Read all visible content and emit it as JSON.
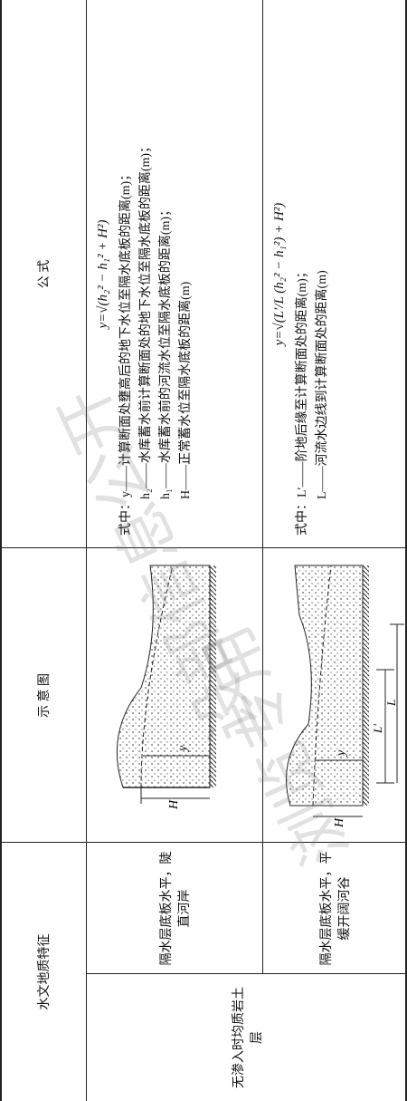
{
  "table": {
    "headers": [
      "水文地质特征",
      "示 意 图",
      "公 式"
    ],
    "category": "无渗入时均质岩土层",
    "rows": [
      {
        "feature": "隔水层底板水平，陡直河岸",
        "diagram_labels": [
          "H",
          "y"
        ],
        "formula": "y=√(h₂² − h₁² + H²)",
        "notes": [
          "式中：y——计算断面处壅高后的地下水位至隔水底板的距离(m)；",
          "h₂——水库蓄水前计算断面处的地下水位至隔水底板的距离(m)；",
          "h₁——水库蓄水前的河流水位至隔水底板的距离(m)；",
          "H——正常蓄水位至隔水底板的距离(m)"
        ]
      },
      {
        "feature": "隔水层底板水平，平缓开阔河谷",
        "diagram_labels": [
          "H",
          "y",
          "L′",
          "L"
        ],
        "formula": "y=√(L′/L (h₂² − h₁²) + H²)",
        "notes": [
          "式中：L′——阶地后缘至计算断面处的距离(m)；",
          "L——河流水边线到计算断面处的距离(m)"
        ]
      }
    ]
  },
  "watermark": [
    "设部信息公开",
    "浏览专用"
  ]
}
